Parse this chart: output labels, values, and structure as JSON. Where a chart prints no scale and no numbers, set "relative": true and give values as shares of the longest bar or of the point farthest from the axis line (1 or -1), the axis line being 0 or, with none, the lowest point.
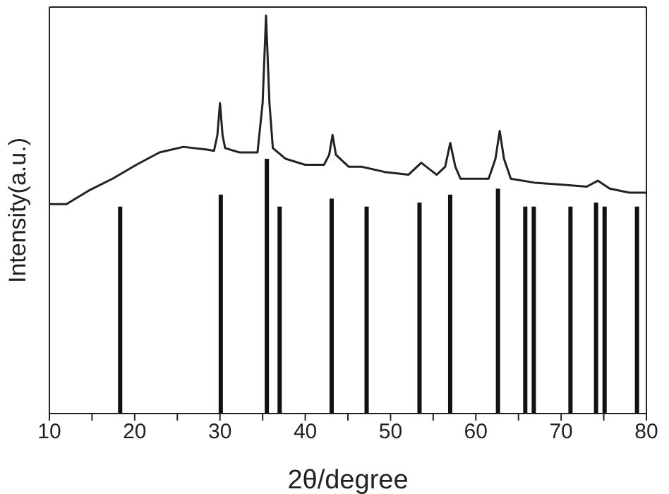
{
  "chart_data": {
    "type": "line",
    "relative": true,
    "xlabel": "2θ/degree",
    "ylabel": "Intensity(a.u.)",
    "xlim": [
      10,
      80
    ],
    "xticks": [
      10,
      {
        "value": 15,
        "label": null
      },
      20,
      {
        "value": 25,
        "label": null
      },
      30,
      {
        "value": 35,
        "label": null
      },
      40,
      {
        "value": 45,
        "label": null
      },
      50,
      {
        "value": 55,
        "label": null
      },
      60,
      {
        "value": 65,
        "label": null
      },
      70,
      {
        "value": 75,
        "label": null
      },
      80
    ],
    "series": [
      {
        "color": "#222222",
        "x": [
          10,
          12,
          14.6,
          17.4,
          20.2,
          22.9,
          25.7,
          28.5,
          29.3,
          29.7,
          30,
          30.3,
          30.6,
          32.3,
          34.4,
          35,
          35.4,
          35.8,
          36.2,
          37.7,
          40,
          42.2,
          42.8,
          43.2,
          43.6,
          45.1,
          46.6,
          49.3,
          52.1,
          53.6,
          55.4,
          56.4,
          57,
          57.6,
          58.2,
          61.5,
          62.3,
          62.8,
          63.3,
          64.1,
          66.9,
          70.2,
          73,
          74.3,
          75.7,
          78,
          80
        ],
        "values": [
          0.526,
          0.526,
          0.56,
          0.59,
          0.625,
          0.656,
          0.67,
          0.663,
          0.66,
          0.7,
          0.78,
          0.7,
          0.667,
          0.656,
          0.656,
          0.78,
          1.0,
          0.78,
          0.667,
          0.64,
          0.625,
          0.625,
          0.65,
          0.7,
          0.65,
          0.62,
          0.62,
          0.607,
          0.6,
          0.63,
          0.6,
          0.62,
          0.68,
          0.62,
          0.59,
          0.59,
          0.64,
          0.71,
          0.64,
          0.59,
          0.58,
          0.575,
          0.57,
          0.585,
          0.565,
          0.555,
          0.555
        ]
      },
      {
        "type": "bar",
        "color": "#111111",
        "x": [
          18.3,
          30.1,
          35.5,
          37.0,
          43.1,
          47.2,
          53.4,
          57.0,
          62.6,
          65.8,
          66.8,
          71.1,
          74.1,
          75.1,
          78.9
        ],
        "values": [
          0.52,
          0.55,
          0.64,
          0.52,
          0.54,
          0.52,
          0.53,
          0.55,
          0.565,
          0.52,
          0.52,
          0.52,
          0.53,
          0.52,
          0.52
        ]
      }
    ]
  }
}
